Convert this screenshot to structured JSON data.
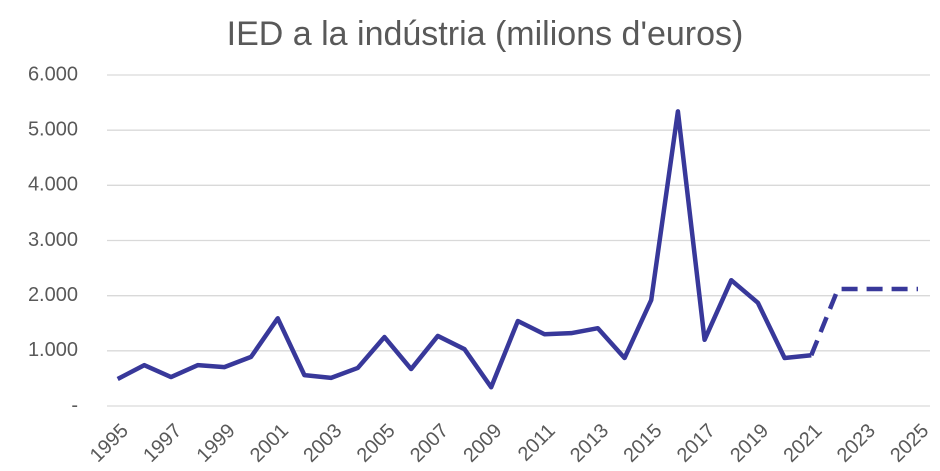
{
  "chart_data": {
    "type": "line",
    "title": "IED a la indústria (milions d'euros)",
    "x": [
      1995,
      1996,
      1997,
      1998,
      1999,
      2000,
      2001,
      2002,
      2003,
      2004,
      2005,
      2006,
      2007,
      2008,
      2009,
      2010,
      2011,
      2012,
      2013,
      2014,
      2015,
      2016,
      2017,
      2018,
      2019,
      2020,
      2021,
      2022,
      2023,
      2024,
      2025
    ],
    "series": [
      {
        "color": "#38389a",
        "dashed": false,
        "values": [
          490,
          740,
          525,
          740,
          705,
          890,
          1590,
          560,
          510,
          690,
          1250,
          670,
          1270,
          1030,
          340,
          1540,
          1300,
          1320,
          1410,
          870,
          1920,
          5340,
          1200,
          2280,
          1870,
          870,
          920,
          null,
          null,
          null,
          null
        ]
      },
      {
        "color": "#38389a",
        "dashed": true,
        "values": [
          null,
          null,
          null,
          null,
          null,
          null,
          null,
          null,
          null,
          null,
          null,
          null,
          null,
          null,
          null,
          null,
          null,
          null,
          null,
          null,
          null,
          null,
          null,
          null,
          null,
          null,
          920,
          2120,
          2120,
          2120,
          2120
        ]
      }
    ],
    "xlim": [
      1994.6,
      2025.45
    ],
    "xticks": [
      1995,
      1997,
      1999,
      2001,
      2003,
      2005,
      2007,
      2009,
      2011,
      2013,
      2015,
      2017,
      2019,
      2021,
      2023,
      2025
    ],
    "ylim": [
      0,
      6000
    ],
    "yticks": [
      {
        "value": 0,
        "label": "-"
      },
      {
        "value": 1000,
        "label": "1.000"
      },
      {
        "value": 2000,
        "label": "2.000"
      },
      {
        "value": 3000,
        "label": "3.000"
      },
      {
        "value": 4000,
        "label": "4.000"
      },
      {
        "value": 5000,
        "label": "5.000"
      },
      {
        "value": 6000,
        "label": "6.000"
      }
    ],
    "grid": true
  }
}
